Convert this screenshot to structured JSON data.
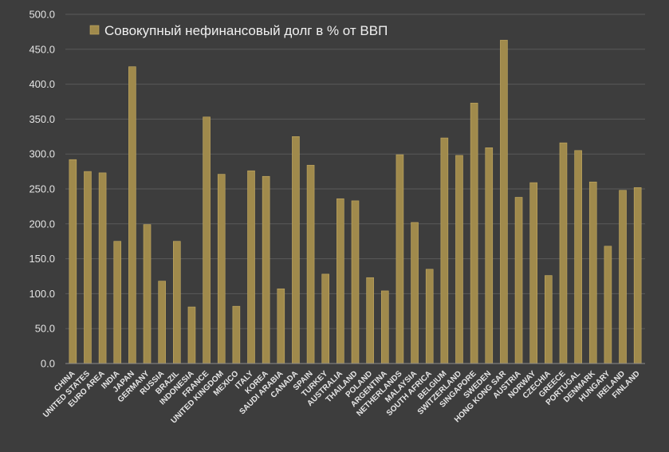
{
  "colors": {
    "background": "#3d3d3d",
    "bar": "#a08a4c",
    "bar_edge": "#c5ab62",
    "grid": "#5a5a5a",
    "axis": "#8a8a8a"
  },
  "chart_data": {
    "type": "bar",
    "title": "",
    "xlabel": "",
    "ylabel": "",
    "ylim": [
      0,
      500
    ],
    "y_ticks": [
      "0.0",
      "50.0",
      "100.0",
      "150.0",
      "200.0",
      "250.0",
      "300.0",
      "350.0",
      "400.0",
      "450.0",
      "500.0"
    ],
    "grid": true,
    "legend_position": "top-left",
    "series": [
      {
        "name": "Совокупный нефинансовый долг в % от ВВП",
        "values": [
          292,
          275,
          273,
          175,
          425,
          199,
          118,
          175,
          81,
          353,
          271,
          82,
          276,
          268,
          107,
          325,
          284,
          128,
          236,
          233,
          123,
          104,
          299,
          202,
          135,
          323,
          298,
          373,
          309,
          463,
          238,
          259,
          126,
          316,
          305,
          260,
          168,
          248,
          252
        ]
      }
    ],
    "categories": [
      "CHINA",
      "UNITED STATES",
      "EURO AREA",
      "INDIA",
      "JAPAN",
      "GERMANY",
      "RUSSIA",
      "BRAZIL",
      "INDONESIA",
      "FRANCE",
      "UNITED KINGDOM",
      "MEXICO",
      "ITALY",
      "KOREA",
      "SAUDI ARABIA",
      "CANADA",
      "SPAIN",
      "TURKEY",
      "AUSTRALIA",
      "THAILAND",
      "POLAND",
      "ARGENTINA",
      "NETHERLANDS",
      "MALAYSIA",
      "SOUTH AFRICA",
      "BELGIUM",
      "SWITZERLAND",
      "SINGAPORE",
      "SWEDEN",
      "HONG KONG SAR",
      "AUSTRIA",
      "NORWAY",
      "CZECHIA",
      "GREECE",
      "PORTUGAL",
      "DENMARK",
      "HUNGARY",
      "IRELAND",
      "FINLAND"
    ]
  }
}
